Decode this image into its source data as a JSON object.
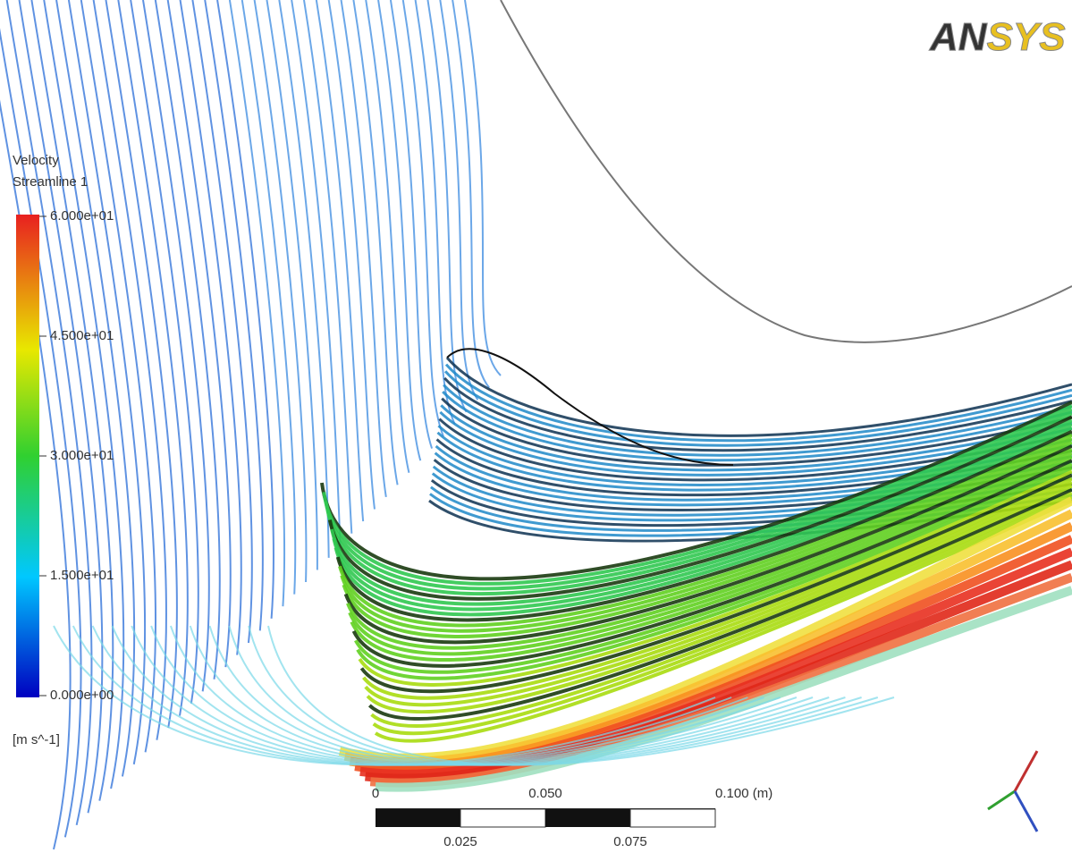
{
  "logo": {
    "left": "AN",
    "right": "SYS"
  },
  "legend": {
    "title": "Velocity",
    "subtitle": "Streamline 1",
    "ticks": [
      "6.000e+01",
      "4.500e+01",
      "3.000e+01",
      "1.500e+01",
      "0.000e+00"
    ],
    "unit": "[m s^-1]"
  },
  "scale_bar": {
    "top": [
      "0",
      "0.050",
      "0.100 (m)"
    ],
    "bottom": [
      "0.025",
      "0.075"
    ]
  }
}
